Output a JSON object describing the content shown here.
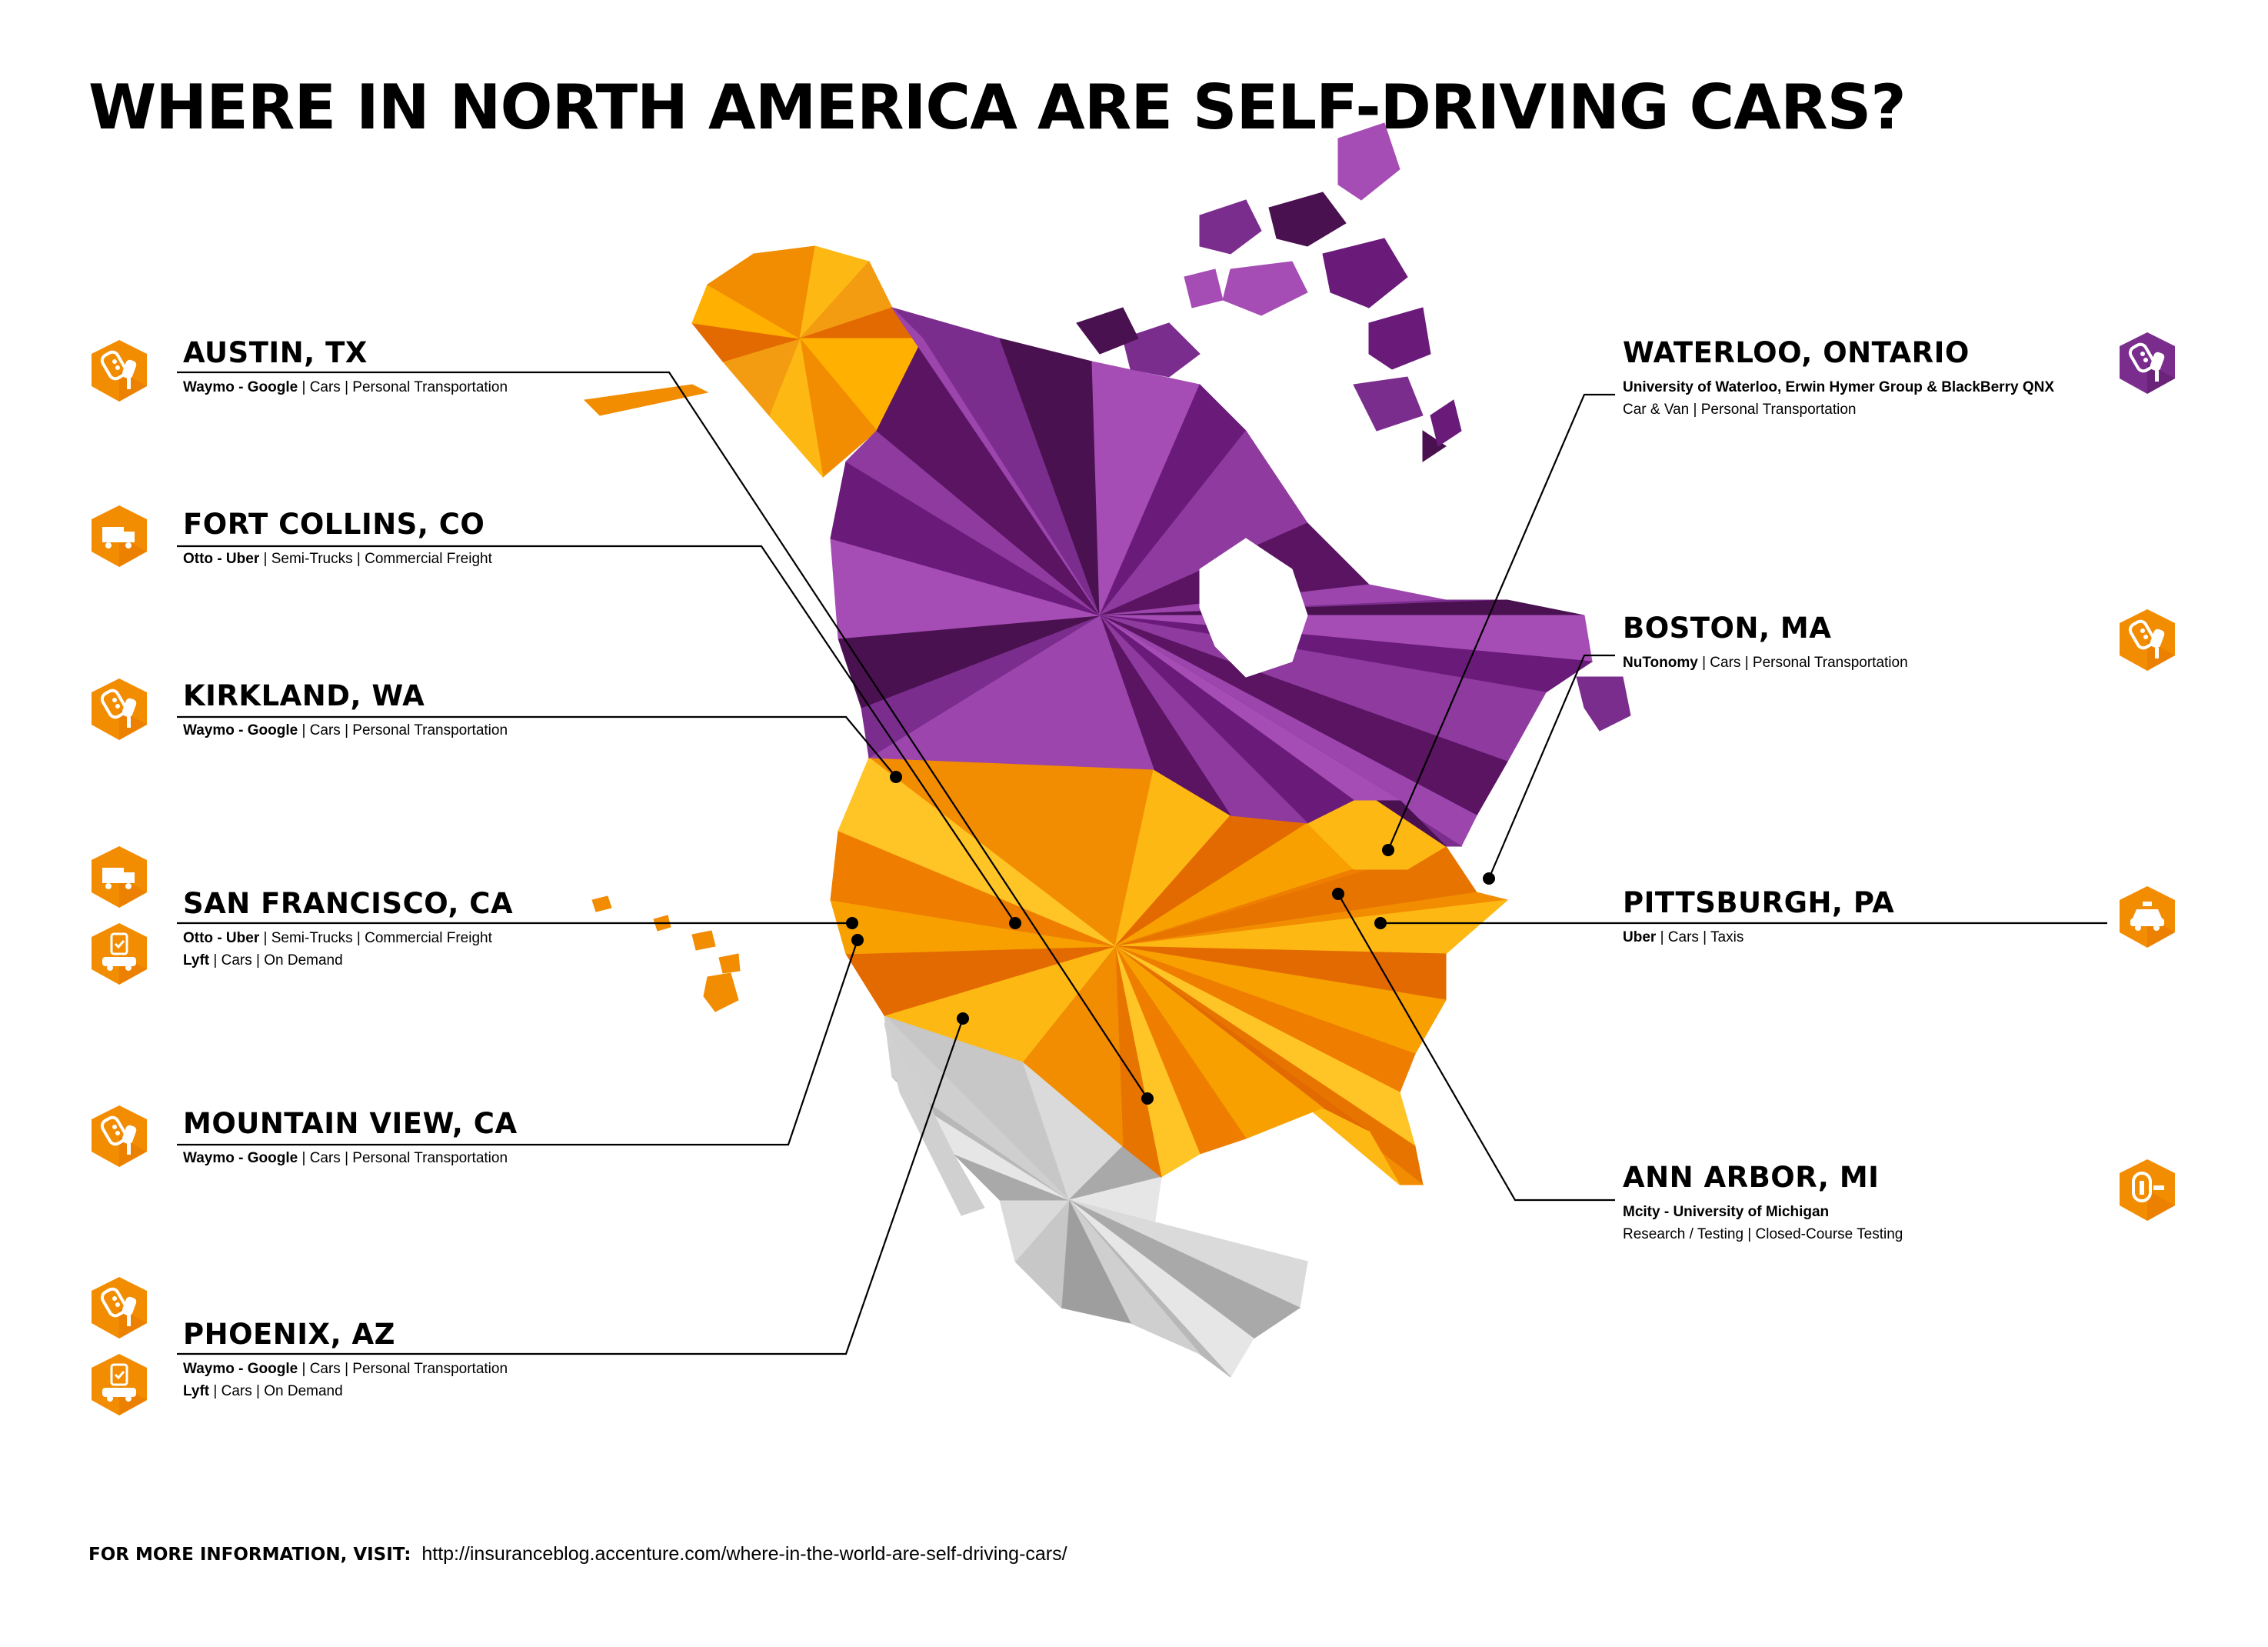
{
  "title": "WHERE IN NORTH AMERICA ARE SELF-DRIVING CARS?",
  "colors": {
    "orange": "#F28C00",
    "orange_light": "#FDB813",
    "orange_dark": "#E36A00",
    "purple": "#7B2D8E",
    "purple_dark": "#4A1150",
    "purple_light": "#A64DB5",
    "grey": "#BDBDBD",
    "grey_light": "#E3E3E3",
    "line": "#000000"
  },
  "locations": [
    {
      "id": "austin",
      "city": "AUSTIN, TX",
      "side": "left",
      "lines": [
        [
          {
            "b": "Waymo - Google",
            "t": " | Cars | Personal Transportation"
          }
        ]
      ],
      "icons": [
        "car-key-icon"
      ],
      "badge": "orange"
    },
    {
      "id": "fortcollins",
      "city": "FORT COLLINS, CO",
      "side": "left",
      "lines": [
        [
          {
            "b": "Otto - Uber",
            "t": " | Semi-Trucks | Commercial Freight"
          }
        ]
      ],
      "icons": [
        "truck-icon"
      ],
      "badge": "orange"
    },
    {
      "id": "kirkland",
      "city": "KIRKLAND, WA",
      "side": "left",
      "lines": [
        [
          {
            "b": "Waymo - Google",
            "t": " | Cars | Personal Transportation"
          }
        ]
      ],
      "icons": [
        "car-key-icon"
      ],
      "badge": "orange"
    },
    {
      "id": "sanfrancisco",
      "city": "SAN FRANCISCO, CA",
      "side": "left",
      "lines": [
        [
          {
            "b": "Otto - Uber",
            "t": " | Semi-Trucks | Commercial Freight"
          }
        ],
        [
          {
            "b": "Lyft",
            "t": " | Cars | On Demand"
          }
        ]
      ],
      "icons": [
        "truck-icon",
        "on-demand-car-icon"
      ],
      "badge": "orange"
    },
    {
      "id": "mountainview",
      "city": "MOUNTAIN VIEW, CA",
      "side": "left",
      "lines": [
        [
          {
            "b": "Waymo - Google",
            "t": " | Cars | Personal Transportation"
          }
        ]
      ],
      "icons": [
        "car-key-icon"
      ],
      "badge": "orange"
    },
    {
      "id": "phoenix",
      "city": "PHOENIX, AZ",
      "side": "left",
      "lines": [
        [
          {
            "b": "Waymo - Google",
            "t": " | Cars | Personal Transportation"
          }
        ],
        [
          {
            "b": "Lyft",
            "t": " | Cars | On Demand"
          }
        ]
      ],
      "icons": [
        "car-key-icon",
        "on-demand-car-icon"
      ],
      "badge": "orange"
    },
    {
      "id": "waterloo",
      "city": "WATERLOO, ONTARIO",
      "side": "right",
      "lines": [
        [
          {
            "b": "University of Waterloo, Erwin Hymer Group & BlackBerry QNX",
            "t": ""
          }
        ],
        [
          {
            "b": "",
            "t": "Car & Van | Personal Transportation"
          }
        ]
      ],
      "icons": [
        "car-key-icon"
      ],
      "badge": "purple"
    },
    {
      "id": "boston",
      "city": "BOSTON, MA",
      "side": "right",
      "lines": [
        [
          {
            "b": "NuTonomy",
            "t": " | Cars | Personal Transportation"
          }
        ]
      ],
      "icons": [
        "car-key-icon"
      ],
      "badge": "orange"
    },
    {
      "id": "pittsburgh",
      "city": "PITTSBURGH, PA",
      "side": "right",
      "lines": [
        [
          {
            "b": "Uber",
            "t": " | Cars | Taxis"
          }
        ]
      ],
      "icons": [
        "taxi-icon"
      ],
      "badge": "orange"
    },
    {
      "id": "annarbor",
      "city": "ANN ARBOR, MI",
      "side": "right",
      "lines": [
        [
          {
            "b": "Mcity - University of Michigan",
            "t": ""
          }
        ],
        [
          {
            "b": "",
            "t": "Research / Testing | Closed-Course Testing"
          }
        ]
      ],
      "icons": [
        "test-track-icon"
      ],
      "badge": "orange"
    }
  ],
  "footer": {
    "label": "FOR MORE INFORMATION, VISIT:",
    "url": "http://insuranceblog.accenture.com/where-in-the-world-are-self-driving-cars/"
  }
}
